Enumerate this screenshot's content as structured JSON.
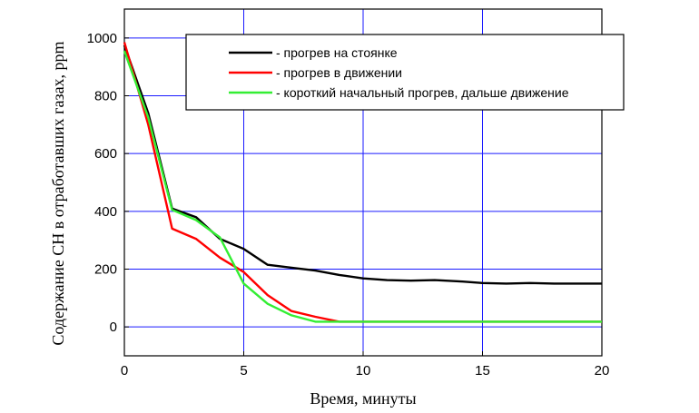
{
  "chart_data": {
    "type": "line",
    "xlabel": "Время, минуты",
    "ylabel": "Содержание СН в отработавших газах, ppm",
    "xlim": [
      0,
      20
    ],
    "ylim": [
      -100,
      1100
    ],
    "x_ticks": [
      0,
      5,
      10,
      15,
      20
    ],
    "y_ticks": [
      0,
      200,
      400,
      600,
      800,
      1000
    ],
    "grid": true,
    "legend_position": "top-right",
    "series": [
      {
        "name": "- прогрев на стоянке",
        "color": "#000000",
        "x": [
          0,
          1,
          2,
          3,
          4,
          5,
          6,
          7,
          8,
          9,
          10,
          11,
          12,
          13,
          14,
          15,
          16,
          17,
          18,
          19,
          20
        ],
        "y": [
          975,
          740,
          410,
          380,
          305,
          270,
          215,
          205,
          195,
          180,
          168,
          162,
          160,
          162,
          158,
          152,
          150,
          152,
          150,
          150,
          150
        ]
      },
      {
        "name": "- прогрев в движении",
        "color": "#ff0000",
        "x": [
          0,
          1,
          2,
          3,
          4,
          5,
          6,
          7,
          8,
          9,
          10,
          15,
          20
        ],
        "y": [
          985,
          700,
          340,
          305,
          240,
          190,
          110,
          55,
          35,
          18,
          18,
          18,
          18
        ]
      },
      {
        "name": "- короткий начальный прогрев, дальше движение",
        "color": "#33ee33",
        "x": [
          0,
          1,
          2,
          3,
          4,
          5,
          6,
          7,
          8,
          9,
          10,
          15,
          20
        ],
        "y": [
          955,
          725,
          405,
          370,
          310,
          150,
          80,
          40,
          18,
          18,
          18,
          18,
          18
        ]
      }
    ]
  }
}
